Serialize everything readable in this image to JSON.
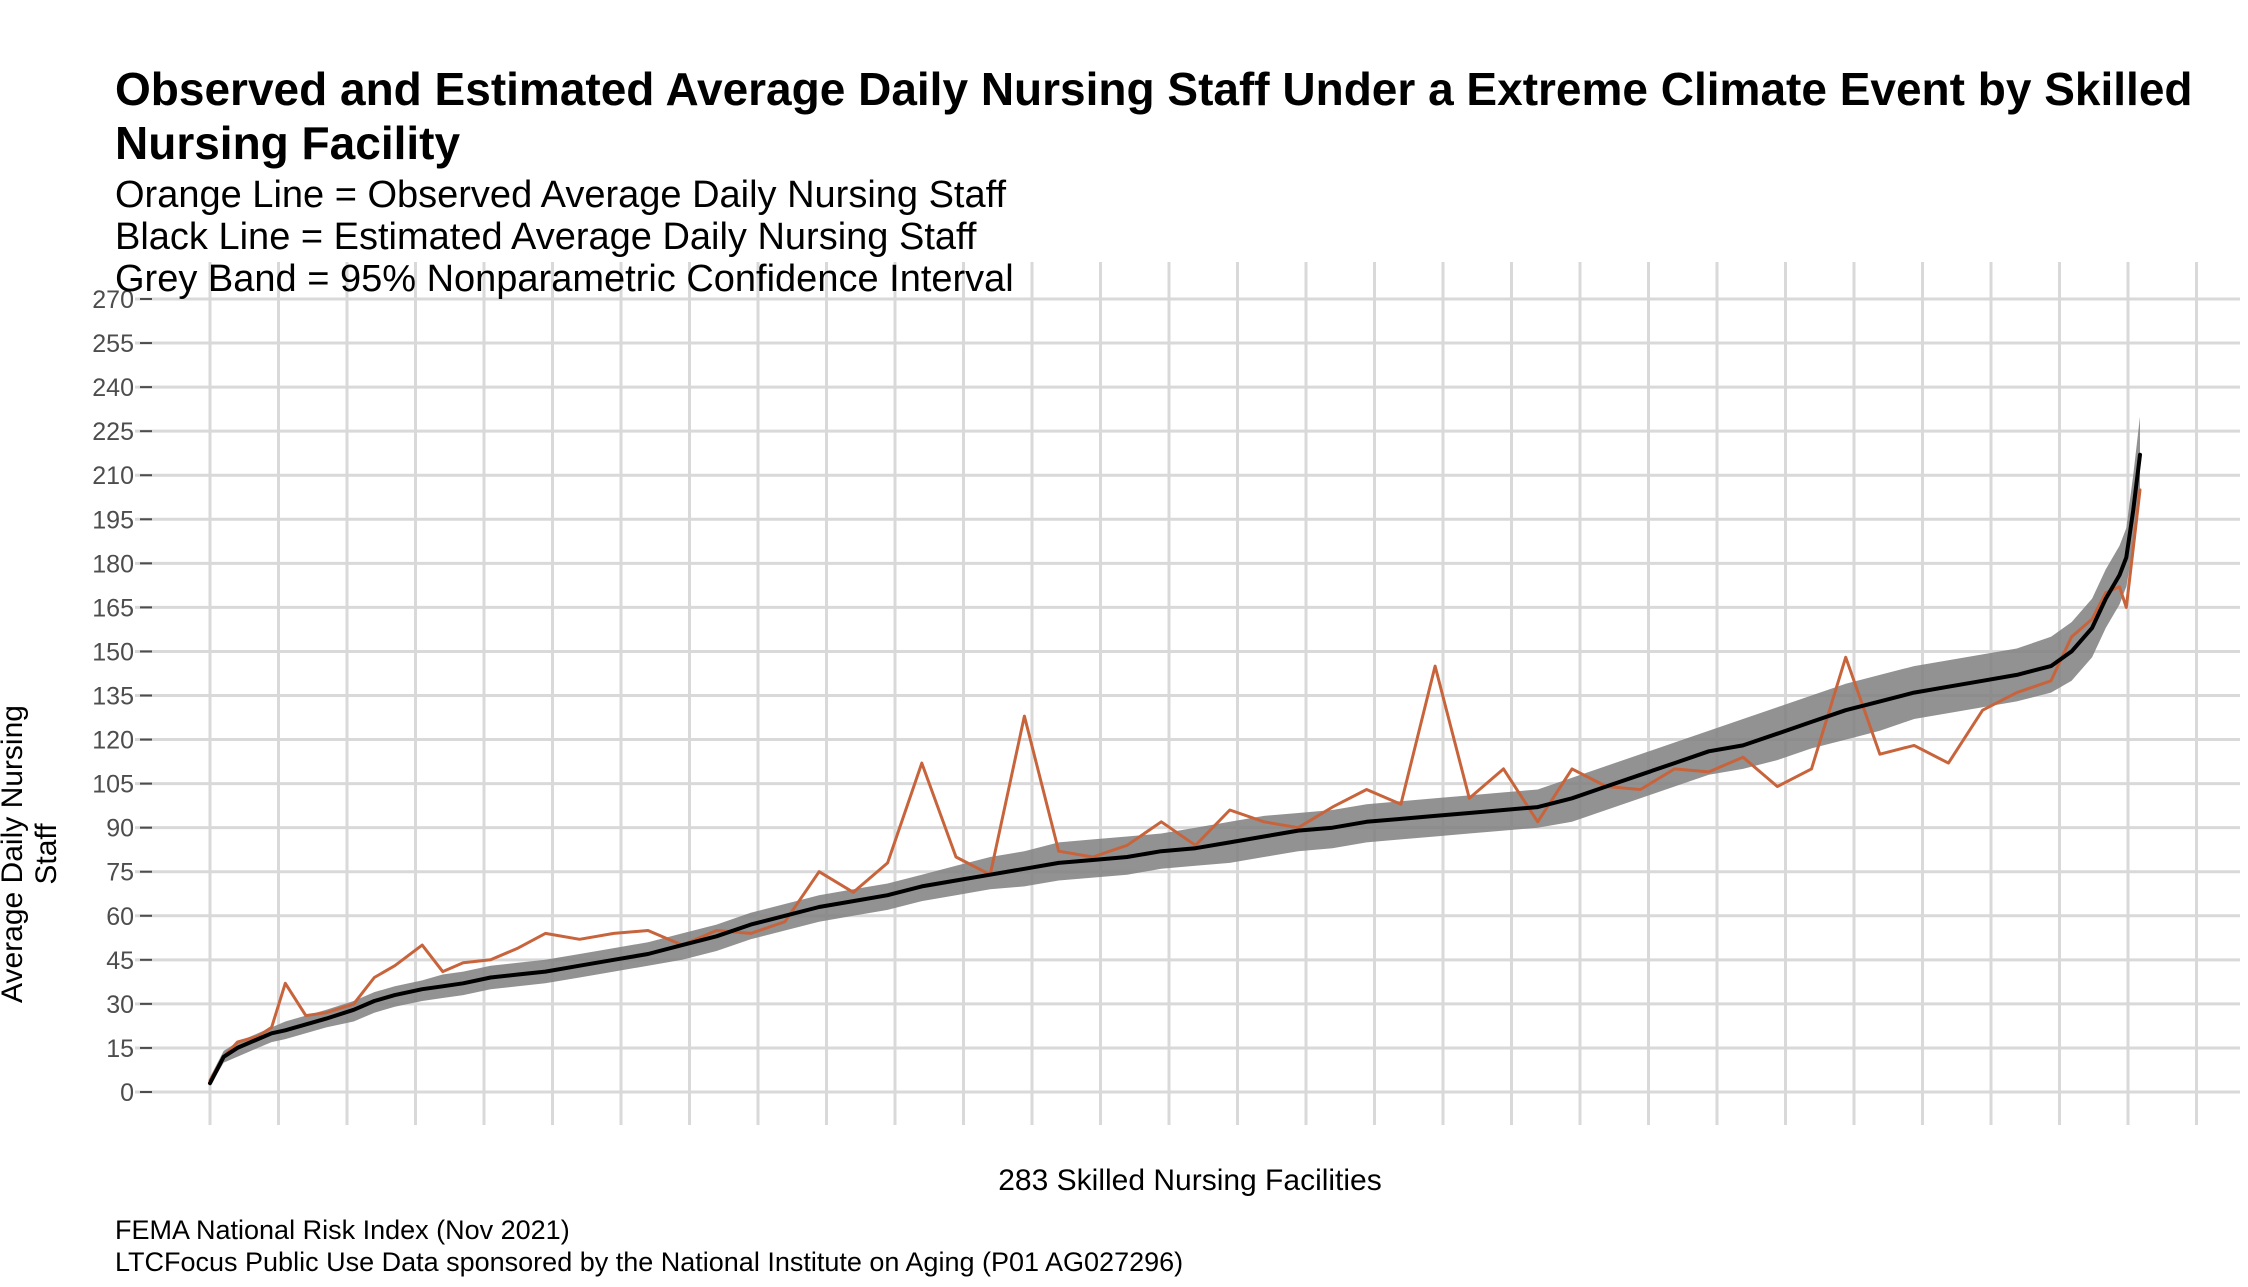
{
  "chart_data": {
    "type": "line",
    "title": "Observed and Estimated Average Daily Nursing Staff Under a Extreme Climate Event by Skilled Nursing Facility",
    "subtitle": [
      "Orange Line = Observed Average Daily Nursing Staff",
      "Black Line = Estimated Average Daily Nursing Staff",
      "Grey Band = 95% Nonparametric Confidence Interval"
    ],
    "xlabel": "283 Skilled Nursing Facilities",
    "ylabel": "Average Daily Nursing Staff",
    "caption": [
      "FEMA National Risk Index (Nov 2021)",
      "LTCFocus Public Use Data sponsored by the National Institute on Aging (P01 AG027296)"
    ],
    "xlim": [
      1,
      283
    ],
    "ylim": [
      0,
      270
    ],
    "yticks": [
      0,
      15,
      30,
      45,
      60,
      75,
      90,
      105,
      120,
      135,
      150,
      165,
      180,
      195,
      210,
      225,
      240,
      255,
      270
    ],
    "grid": true,
    "colors": {
      "observed": "#c8643c",
      "estimated": "#000000",
      "band": "#7f7f7f",
      "grid": "#d9d9d9"
    },
    "series_description": "approximate traced values at selected facility indices",
    "x": [
      1,
      3,
      5,
      8,
      10,
      12,
      15,
      18,
      22,
      25,
      28,
      32,
      35,
      38,
      42,
      46,
      50,
      55,
      60,
      65,
      70,
      75,
      80,
      85,
      90,
      95,
      100,
      105,
      110,
      115,
      120,
      125,
      130,
      135,
      140,
      145,
      150,
      155,
      160,
      165,
      170,
      175,
      180,
      185,
      190,
      195,
      200,
      205,
      210,
      215,
      220,
      225,
      230,
      235,
      240,
      245,
      250,
      255,
      260,
      265,
      270,
      273,
      276,
      278,
      280,
      281,
      282,
      283
    ],
    "series": [
      {
        "name": "Observed",
        "values": [
          4,
          12,
          17,
          19,
          22,
          37,
          26,
          27,
          30,
          39,
          43,
          50,
          41,
          44,
          45,
          49,
          54,
          52,
          54,
          55,
          50,
          55,
          54,
          58,
          75,
          68,
          78,
          112,
          80,
          74,
          128,
          82,
          80,
          84,
          92,
          84,
          96,
          92,
          90,
          97,
          103,
          98,
          145,
          100,
          110,
          92,
          110,
          104,
          103,
          110,
          109,
          114,
          104,
          110,
          148,
          115,
          118,
          112,
          130,
          136,
          140,
          155,
          161,
          170,
          172,
          165,
          185,
          205
        ]
      },
      {
        "name": "Estimated",
        "values": [
          3,
          12,
          15,
          18,
          20,
          21,
          23,
          25,
          28,
          31,
          33,
          35,
          36,
          37,
          39,
          40,
          41,
          43,
          45,
          47,
          50,
          53,
          57,
          60,
          63,
          65,
          67,
          70,
          72,
          74,
          76,
          78,
          79,
          80,
          82,
          83,
          85,
          87,
          89,
          90,
          92,
          93,
          94,
          95,
          96,
          97,
          100,
          104,
          108,
          112,
          116,
          118,
          122,
          126,
          130,
          133,
          136,
          138,
          140,
          142,
          145,
          150,
          158,
          168,
          176,
          182,
          198,
          217
        ]
      },
      {
        "name": "Band upper",
        "values": [
          5,
          14,
          17,
          20,
          22,
          24,
          26,
          28,
          31,
          34,
          36,
          38,
          40,
          41,
          43,
          44,
          45,
          47,
          49,
          51,
          54,
          57,
          61,
          64,
          67,
          69,
          71,
          74,
          77,
          80,
          82,
          85,
          86,
          87,
          88,
          90,
          92,
          94,
          95,
          96,
          98,
          99,
          100,
          101,
          102,
          103,
          107,
          111,
          115,
          119,
          123,
          127,
          131,
          135,
          139,
          142,
          145,
          147,
          149,
          151,
          155,
          160,
          168,
          178,
          186,
          192,
          210,
          230
        ]
      },
      {
        "name": "Band lower",
        "values": [
          2,
          10,
          12,
          15,
          17,
          18,
          20,
          22,
          24,
          27,
          29,
          31,
          32,
          33,
          35,
          36,
          37,
          39,
          41,
          43,
          45,
          48,
          52,
          55,
          58,
          60,
          62,
          65,
          67,
          69,
          70,
          72,
          73,
          74,
          76,
          77,
          78,
          80,
          82,
          83,
          85,
          86,
          87,
          88,
          89,
          90,
          92,
          96,
          100,
          104,
          108,
          110,
          113,
          117,
          120,
          123,
          127,
          129,
          131,
          133,
          136,
          140,
          148,
          158,
          166,
          172,
          186,
          205
        ]
      }
    ]
  }
}
